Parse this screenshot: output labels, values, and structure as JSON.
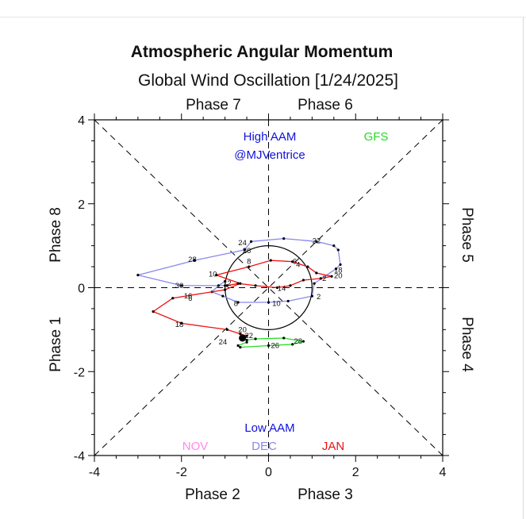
{
  "chart_data": {
    "type": "line",
    "title": "Atmospheric Angular Momentum",
    "subtitle": "Global Wind Oscillation [1/24/2025]",
    "xlim": [
      -4,
      4
    ],
    "ylim": [
      -4,
      4
    ],
    "x_ticks": [
      "-4",
      "-2",
      "0",
      "2",
      "4"
    ],
    "y_ticks": [
      "-4",
      "-2",
      "0",
      "2",
      "4"
    ],
    "phase_labels": {
      "top_left": "Phase 7",
      "top_right": "Phase 6",
      "bottom_left": "Phase 2",
      "bottom_right": "Phase 3",
      "left_top": "Phase 8",
      "left_bottom": "Phase 1",
      "right_top": "Phase 5",
      "right_bottom": "Phase 4"
    },
    "annotations": {
      "high_aam": "High AAM",
      "handle": "@MJVentrice",
      "gfs": "GFS",
      "low_aam": "Low AAM",
      "month_nov": "NOV",
      "month_dec": "DEC",
      "month_jan": "JAN"
    },
    "colors": {
      "nov": "#ff88ee",
      "dec": "#8888ee",
      "jan": "#ee1111",
      "gfs": "#22dd22",
      "high_aam": "#1111dd",
      "low_aam": "#1111dd"
    },
    "grid": false,
    "unit_circle_radius": 1,
    "series": [
      {
        "name": "NOV",
        "points": [
          [
            -1.0,
            0.15
          ]
        ],
        "labels": []
      },
      {
        "name": "DEC",
        "points": [
          [
            -1.0,
            0.15
          ],
          [
            -1.15,
            0.05
          ],
          [
            -1.3,
            -0.1
          ],
          [
            -1.05,
            -0.2
          ],
          [
            -0.7,
            -0.35
          ],
          [
            0.0,
            -0.35
          ],
          [
            0.45,
            -0.32
          ],
          [
            1.0,
            -0.2
          ],
          [
            1.05,
            0.1
          ],
          [
            1.55,
            0.45
          ],
          [
            1.65,
            0.55
          ],
          [
            1.6,
            0.9
          ],
          [
            1.5,
            1.0
          ],
          [
            1.1,
            1.1
          ],
          [
            0.35,
            1.17
          ],
          [
            -0.4,
            1.1
          ],
          [
            -0.55,
            0.9
          ],
          [
            -1.7,
            0.65
          ],
          [
            -3.0,
            0.3
          ],
          [
            -2.0,
            0.05
          ],
          [
            -1.0,
            0.05
          ],
          [
            -0.95,
            0.05
          ]
        ],
        "labels": [
          {
            "text": "2",
            "at": [
              1.15,
              -0.22
            ]
          },
          {
            "text": "6",
            "at": [
              -1.8,
              -0.26
            ]
          },
          {
            "text": "8",
            "at": [
              -0.75,
              -0.38
            ]
          },
          {
            "text": "10",
            "at": [
              0.18,
              -0.38
            ]
          },
          {
            "text": "18",
            "at": [
              1.6,
              0.42
            ]
          },
          {
            "text": "20",
            "at": [
              1.6,
              0.28
            ]
          },
          {
            "text": "22",
            "at": [
              1.1,
              1.12
            ]
          },
          {
            "text": "24",
            "at": [
              -0.6,
              1.07
            ]
          },
          {
            "text": "26",
            "at": [
              -0.5,
              0.88
            ]
          },
          {
            "text": "28",
            "at": [
              -1.75,
              0.67
            ]
          },
          {
            "text": "30",
            "at": [
              -2.05,
              0.05
            ]
          }
        ]
      },
      {
        "name": "JAN",
        "points": [
          [
            -0.95,
            0.05
          ],
          [
            -0.7,
            0.1
          ],
          [
            -0.3,
            0.05
          ],
          [
            0.2,
            0.0
          ],
          [
            0.5,
            0.05
          ],
          [
            0.8,
            0.18
          ],
          [
            1.2,
            0.22
          ],
          [
            1.45,
            0.27
          ],
          [
            1.1,
            0.35
          ],
          [
            0.9,
            0.5
          ],
          [
            0.55,
            0.62
          ],
          [
            0.05,
            0.65
          ],
          [
            -0.45,
            0.5
          ],
          [
            -1.2,
            0.3
          ],
          [
            -0.65,
            0.1
          ],
          [
            -1.0,
            -0.05
          ],
          [
            -2.2,
            -0.25
          ],
          [
            -2.65,
            -0.57
          ],
          [
            -2.0,
            -0.85
          ],
          [
            -0.95,
            -1.0
          ],
          [
            -0.65,
            -1.1
          ],
          [
            -0.5,
            -1.15
          ],
          [
            -0.6,
            -1.2
          ]
        ],
        "labels": [
          {
            "text": "2",
            "at": [
              1.28,
              0.22
            ]
          },
          {
            "text": "4",
            "at": [
              0.68,
              0.55
            ]
          },
          {
            "text": "6",
            "at": [
              0.6,
              0.62
            ]
          },
          {
            "text": "8",
            "at": [
              -0.45,
              0.62
            ]
          },
          {
            "text": "10",
            "at": [
              -1.28,
              0.32
            ]
          },
          {
            "text": "12",
            "at": [
              -0.95,
              0.1
            ]
          },
          {
            "text": "14",
            "at": [
              0.3,
              -0.02
            ]
          },
          {
            "text": "16",
            "at": [
              -1.85,
              -0.2
            ]
          },
          {
            "text": "18",
            "at": [
              -2.05,
              -0.88
            ]
          },
          {
            "text": "20",
            "at": [
              -0.6,
              -1.0
            ]
          },
          {
            "text": "22",
            "at": [
              -0.45,
              -1.14
            ]
          },
          {
            "text": "24",
            "at": [
              -1.05,
              -1.3
            ]
          }
        ]
      },
      {
        "name": "GFS",
        "points": [
          [
            -0.5,
            -1.3
          ],
          [
            -0.7,
            -1.38
          ],
          [
            -0.65,
            -1.42
          ],
          [
            0.0,
            -1.38
          ],
          [
            0.55,
            -1.35
          ],
          [
            0.8,
            -1.28
          ],
          [
            0.35,
            -1.2
          ],
          [
            -0.3,
            -1.22
          ],
          [
            -0.5,
            -1.25
          ]
        ],
        "labels": [
          {
            "text": "26",
            "at": [
              0.15,
              -1.38
            ]
          },
          {
            "text": "28",
            "at": [
              0.68,
              -1.28
            ]
          }
        ]
      }
    ]
  }
}
